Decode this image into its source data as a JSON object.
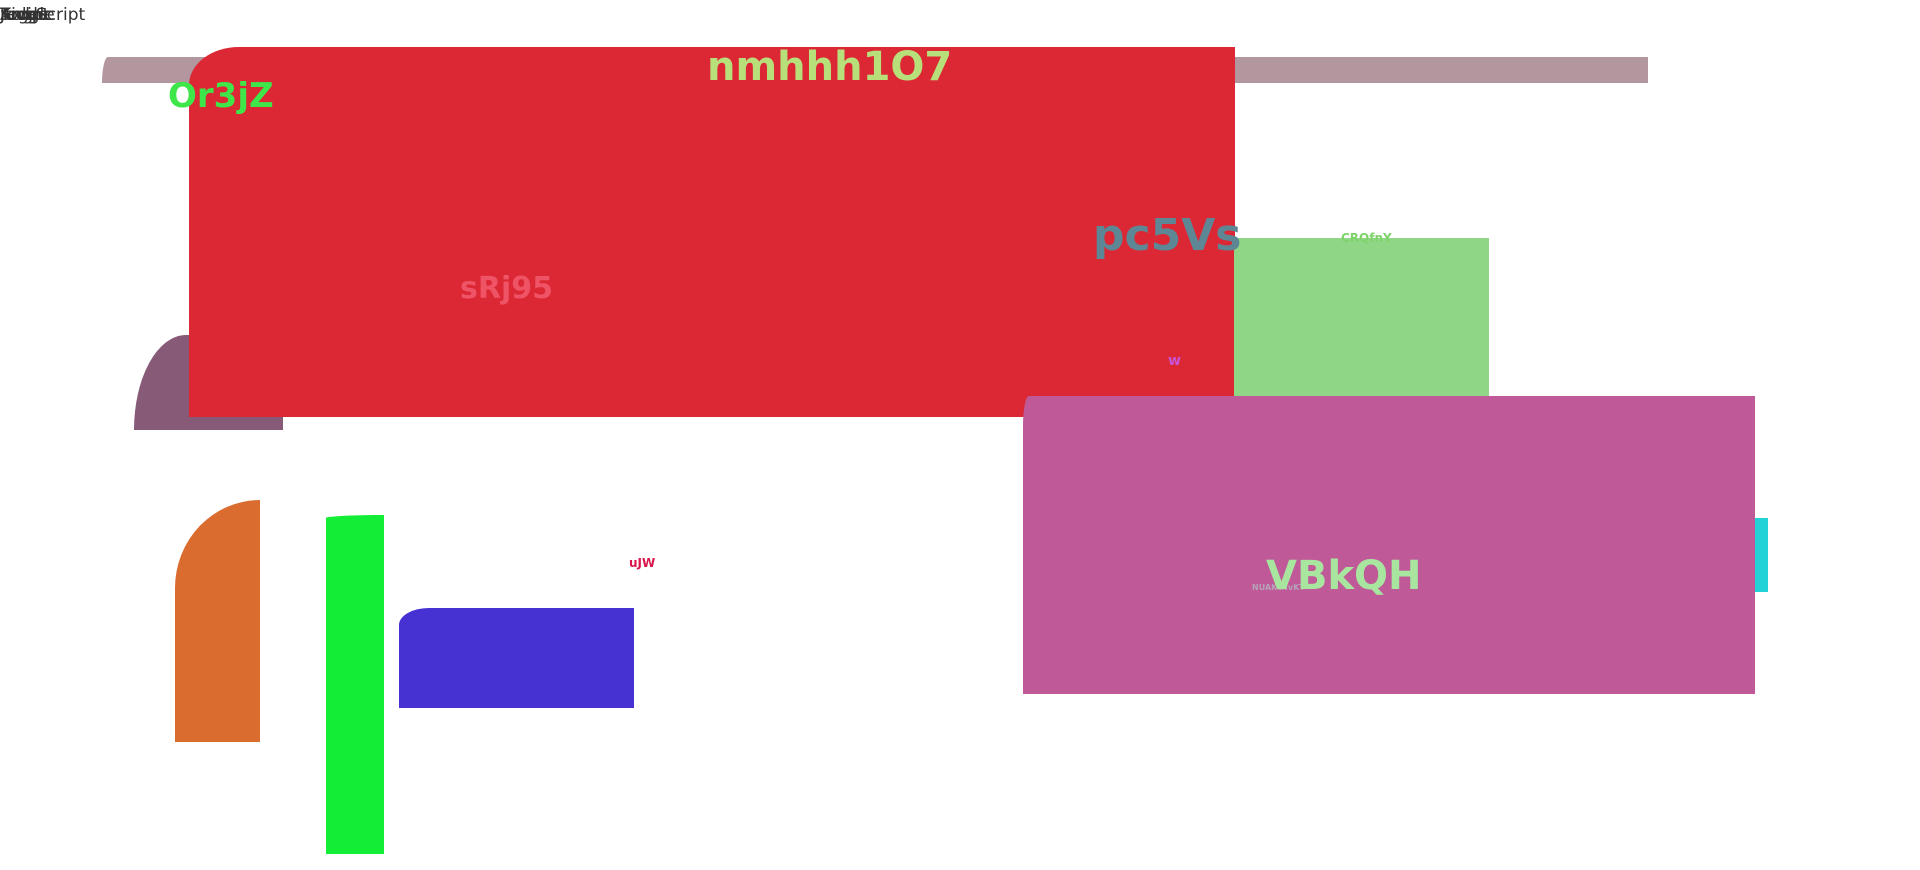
{
  "top_left": {
    "layers": [
      "JavaScript",
      "Angle",
      "Toggle",
      "Script",
      "Judge",
      "Kick"
    ]
  },
  "labels": {
    "or3jz": "Or3jZ",
    "nmhhh": "nmhhh1O7",
    "pc5vs": "pc5Vs",
    "srj95": "sRj95",
    "w": "w",
    "small_green": "CRQfnY",
    "ujw": "uJW",
    "vbkqh": "VBkQH",
    "tiny_pink": "NUAKtNvKT"
  },
  "colors": {
    "mauve_bar": "#b3979f",
    "dusky_shape": "#875a78",
    "red_panel": "#dc2835",
    "green_panel": "#8fd786",
    "pink_panel": "#c05998",
    "cyan_strip": "#23d2d6",
    "orange_shape": "#da6c2f",
    "lime_tall": "#12ee35",
    "indigo_shape": "#4631d2"
  }
}
